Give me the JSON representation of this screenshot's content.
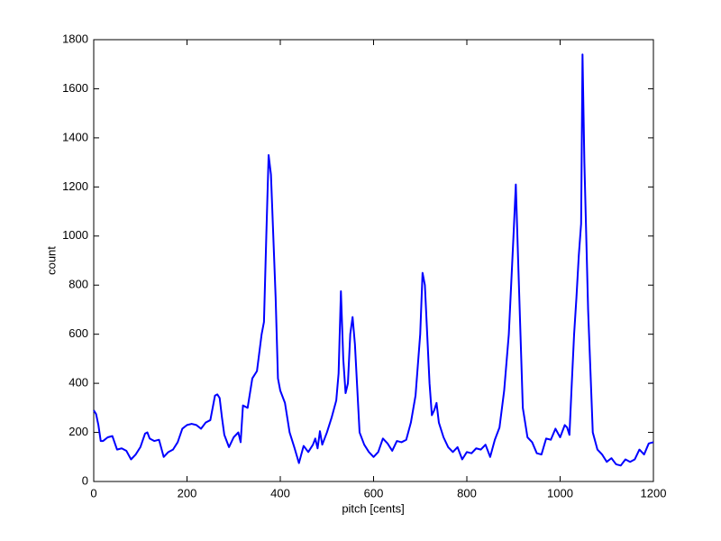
{
  "chart_data": {
    "type": "line",
    "xlabel": "pitch [cents]",
    "ylabel": "count",
    "x": [
      0,
      5,
      10,
      15,
      20,
      30,
      40,
      50,
      60,
      70,
      80,
      90,
      100,
      110,
      115,
      120,
      130,
      140,
      150,
      160,
      170,
      180,
      190,
      200,
      210,
      220,
      230,
      240,
      250,
      260,
      265,
      270,
      275,
      280,
      290,
      300,
      310,
      315,
      320,
      330,
      340,
      350,
      360,
      365,
      370,
      375,
      380,
      385,
      390,
      395,
      400,
      410,
      420,
      430,
      440,
      450,
      460,
      470,
      475,
      480,
      485,
      490,
      500,
      510,
      520,
      525,
      530,
      535,
      540,
      545,
      550,
      555,
      560,
      565,
      570,
      580,
      590,
      600,
      610,
      620,
      630,
      640,
      650,
      660,
      670,
      680,
      690,
      700,
      705,
      710,
      715,
      720,
      725,
      730,
      735,
      740,
      750,
      760,
      770,
      780,
      790,
      800,
      810,
      820,
      830,
      840,
      850,
      860,
      870,
      880,
      890,
      895,
      900,
      905,
      910,
      915,
      920,
      930,
      940,
      950,
      960,
      970,
      980,
      990,
      1000,
      1010,
      1015,
      1020,
      1025,
      1030,
      1035,
      1040,
      1045,
      1048,
      1052,
      1060,
      1065,
      1070,
      1080,
      1090,
      1100,
      1110,
      1120,
      1130,
      1140,
      1150,
      1160,
      1170,
      1180,
      1190,
      1200
    ],
    "values": [
      290,
      275,
      230,
      165,
      165,
      180,
      185,
      130,
      135,
      125,
      90,
      110,
      140,
      195,
      200,
      175,
      165,
      170,
      100,
      120,
      130,
      160,
      215,
      230,
      235,
      230,
      215,
      240,
      250,
      350,
      355,
      340,
      260,
      190,
      140,
      180,
      200,
      160,
      310,
      300,
      420,
      450,
      600,
      650,
      1000,
      1330,
      1250,
      1000,
      750,
      420,
      370,
      320,
      200,
      140,
      75,
      145,
      120,
      150,
      175,
      135,
      205,
      150,
      200,
      260,
      330,
      440,
      775,
      500,
      360,
      400,
      600,
      670,
      560,
      380,
      200,
      150,
      120,
      100,
      120,
      175,
      155,
      125,
      165,
      160,
      170,
      240,
      350,
      600,
      850,
      800,
      600,
      400,
      270,
      290,
      320,
      240,
      180,
      140,
      120,
      140,
      90,
      120,
      115,
      135,
      130,
      150,
      100,
      170,
      220,
      370,
      600,
      800,
      1000,
      1210,
      900,
      600,
      300,
      180,
      160,
      115,
      110,
      175,
      170,
      215,
      180,
      230,
      220,
      190,
      400,
      600,
      750,
      920,
      1050,
      1740,
      1300,
      700,
      450,
      200,
      130,
      110,
      80,
      95,
      70,
      65,
      90,
      80,
      90,
      130,
      110,
      155,
      160
    ],
    "color": "#0000ff",
    "xlim": [
      0,
      1200
    ],
    "xticks": [
      0,
      200,
      400,
      600,
      800,
      1000,
      1200
    ],
    "ylim": [
      0,
      1800
    ],
    "yticks": [
      0,
      200,
      400,
      600,
      800,
      1000,
      1200,
      1400,
      1600,
      1800
    ]
  }
}
